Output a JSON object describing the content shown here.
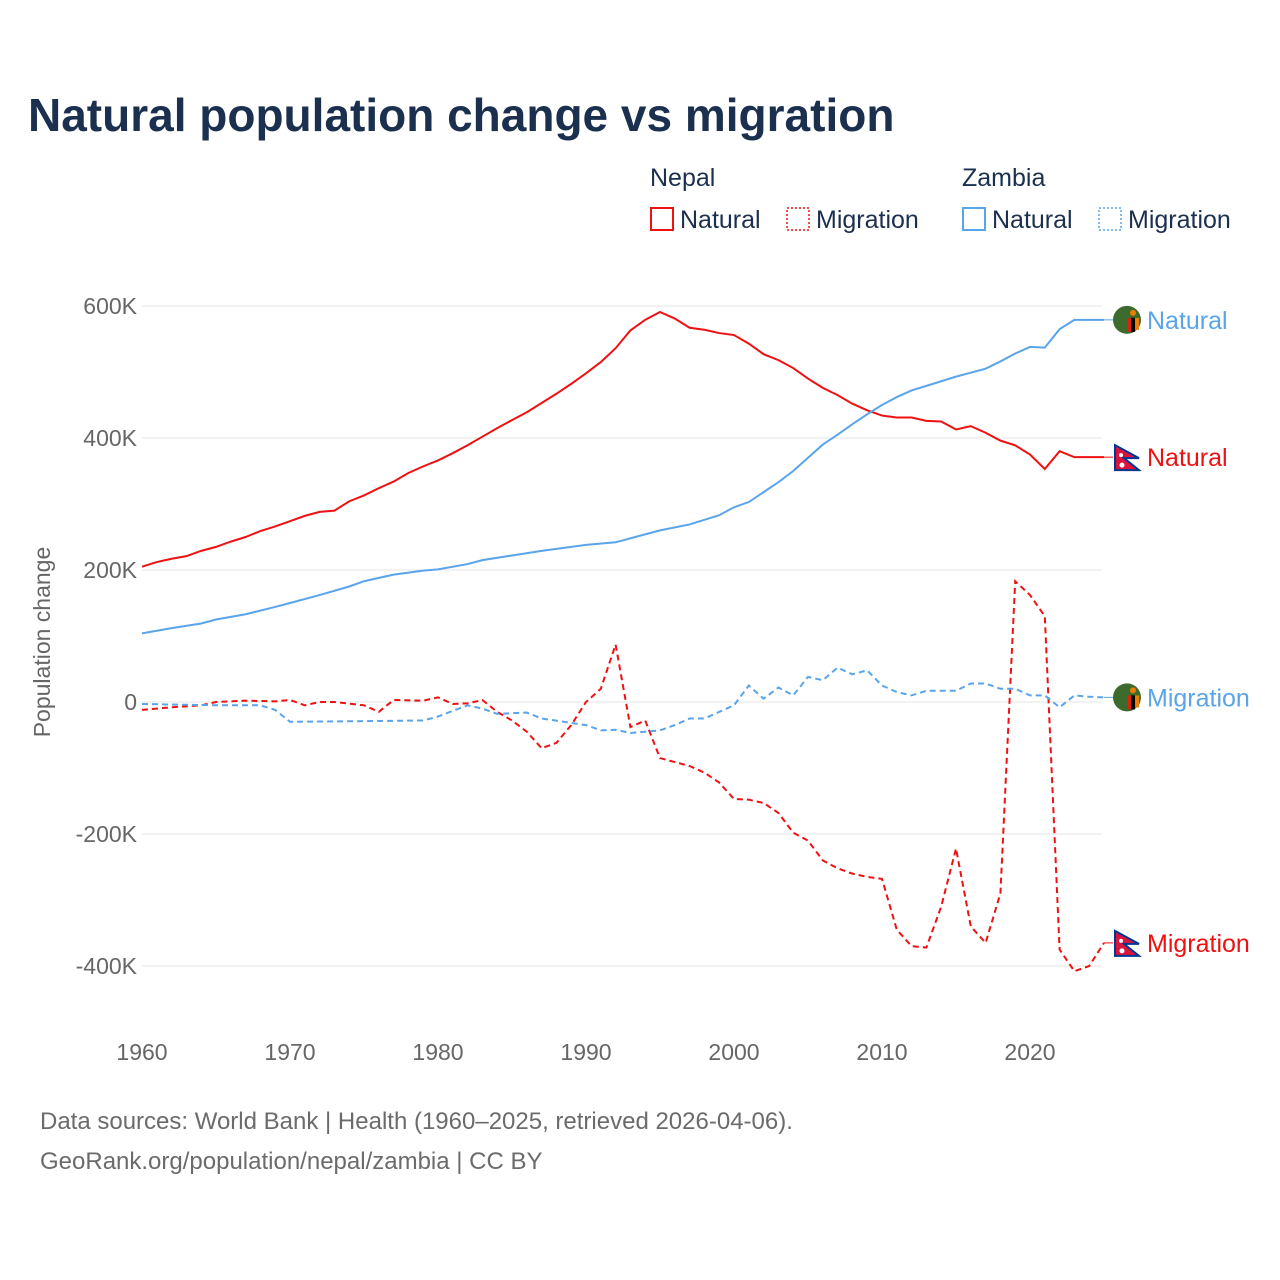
{
  "title": "Natural population change vs migration",
  "legend": {
    "groups": [
      {
        "name": "Nepal",
        "items": [
          "Natural",
          "Migration"
        ],
        "color": "#ee1111"
      },
      {
        "name": "Zambia",
        "items": [
          "Natural",
          "Migration"
        ],
        "color": "#5aa4ea"
      }
    ]
  },
  "footer": {
    "line1": "Data sources: World Bank | Health (1960–2025, retrieved 2026-04-06).",
    "line2": "GeoRank.org/population/nepal/zambia | CC BY"
  },
  "chart_data": {
    "type": "line",
    "ylabel": "Population change",
    "xlabel": "",
    "xlim": [
      1960,
      2025
    ],
    "ylim": [
      -450000,
      650000
    ],
    "xticks": [
      "1960",
      "1970",
      "1980",
      "1990",
      "2000",
      "2010",
      "2020"
    ],
    "yticks": [
      {
        "v": 600000,
        "label": "600K"
      },
      {
        "v": 400000,
        "label": "400K"
      },
      {
        "v": 200000,
        "label": "200K"
      },
      {
        "v": 0,
        "label": "0"
      },
      {
        "v": -200000,
        "label": "-200K"
      },
      {
        "v": -400000,
        "label": "-400K"
      }
    ],
    "grid": true,
    "series": [
      {
        "name": "Nepal Natural",
        "label": "Natural",
        "color": "#ee1111",
        "dash": false,
        "x": [
          1960,
          1961,
          1962,
          1963,
          1964,
          1965,
          1966,
          1967,
          1968,
          1969,
          1970,
          1971,
          1972,
          1973,
          1974,
          1975,
          1976,
          1977,
          1978,
          1979,
          1980,
          1981,
          1982,
          1983,
          1984,
          1985,
          1986,
          1987,
          1988,
          1989,
          1990,
          1991,
          1992,
          1993,
          1994,
          1995,
          1996,
          1997,
          1998,
          1999,
          2000,
          2001,
          2002,
          2003,
          2004,
          2005,
          2006,
          2007,
          2008,
          2009,
          2010,
          2011,
          2012,
          2013,
          2014,
          2015,
          2016,
          2017,
          2018,
          2019,
          2020,
          2021,
          2022,
          2023,
          2024,
          2025
        ],
        "y": [
          205000,
          212000,
          217000,
          221000,
          229000,
          235000,
          243000,
          250000,
          259000,
          266000,
          274000,
          282000,
          288000,
          290000,
          304000,
          313000,
          324000,
          334000,
          347000,
          357000,
          366000,
          377000,
          389000,
          402000,
          415000,
          427000,
          439000,
          453000,
          467000,
          482000,
          498000,
          515000,
          536000,
          563000,
          579000,
          591000,
          581000,
          567000,
          564000,
          559000,
          556000,
          543000,
          527000,
          518000,
          506000,
          490000,
          476000,
          465000,
          452000,
          442000,
          434000,
          431000,
          431000,
          426000,
          425000,
          413000,
          418000,
          408000,
          396000,
          389000,
          375000,
          353000,
          380000,
          371000,
          371000,
          371000
        ]
      },
      {
        "name": "Nepal Migration",
        "label": "Migration",
        "color": "#ee1111",
        "dash": true,
        "x": [
          1960,
          1962,
          1964,
          1965,
          1967,
          1969,
          1970,
          1971,
          1972,
          1973,
          1975,
          1976,
          1977,
          1979,
          1980,
          1981,
          1982,
          1983,
          1984,
          1985,
          1986,
          1987,
          1988,
          1989,
          1990,
          1991,
          1992,
          1993,
          1994,
          1995,
          1996,
          1997,
          1998,
          1999,
          2000,
          2001,
          2002,
          2003,
          2004,
          2005,
          2006,
          2007,
          2008,
          2009,
          2010,
          2011,
          2012,
          2013,
          2014,
          2015,
          2016,
          2017,
          2018,
          2019,
          2020,
          2021,
          2022,
          2023,
          2024,
          2025
        ],
        "y": [
          -12000,
          -8000,
          -5000,
          0,
          2000,
          1000,
          3000,
          -5000,
          0,
          0,
          -5000,
          -15000,
          3000,
          2000,
          7000,
          -3000,
          -2000,
          3000,
          -15000,
          -28000,
          -45000,
          -70000,
          -62000,
          -35000,
          0,
          20000,
          87000,
          -38000,
          -28000,
          -85000,
          -91000,
          -97000,
          -107000,
          -122000,
          -147000,
          -148000,
          -153000,
          -168000,
          -198000,
          -210000,
          -240000,
          -252000,
          -260000,
          -265000,
          -268000,
          -345000,
          -370000,
          -372000,
          -310000,
          -222000,
          -340000,
          -365000,
          -290000,
          183000,
          162000,
          130000,
          -375000,
          -408000,
          -400000,
          -365000
        ]
      },
      {
        "name": "Zambia Natural",
        "label": "Natural",
        "color": "#5aa4ea",
        "dash": false,
        "x": [
          1960,
          1962,
          1964,
          1965,
          1967,
          1969,
          1970,
          1972,
          1974,
          1975,
          1977,
          1979,
          1980,
          1982,
          1983,
          1985,
          1987,
          1989,
          1990,
          1992,
          1995,
          1997,
          1999,
          2000,
          2001,
          2002,
          2003,
          2004,
          2005,
          2006,
          2007,
          2008,
          2009,
          2010,
          2011,
          2012,
          2013,
          2014,
          2015,
          2016,
          2017,
          2018,
          2019,
          2020,
          2021,
          2022,
          2023,
          2024,
          2025
        ],
        "y": [
          104000,
          112000,
          119000,
          125000,
          133000,
          144000,
          150000,
          162000,
          175000,
          183000,
          193000,
          199000,
          201000,
          209000,
          215000,
          222000,
          229000,
          235000,
          238000,
          242000,
          260000,
          269000,
          283000,
          295000,
          303000,
          318000,
          333000,
          350000,
          370000,
          390000,
          405000,
          421000,
          436000,
          450000,
          462000,
          472000,
          479000,
          486000,
          493000,
          499000,
          505000,
          516000,
          528000,
          538000,
          537000,
          565000,
          579000,
          579000,
          579000
        ]
      },
      {
        "name": "Zambia Migration",
        "label": "Migration",
        "color": "#5aa4ea",
        "dash": true,
        "x": [
          1960,
          1965,
          1968,
          1969,
          1970,
          1975,
          1979,
          1980,
          1982,
          1983,
          1984,
          1986,
          1987,
          1990,
          1991,
          1992,
          1993,
          1995,
          1996,
          1997,
          1998,
          2000,
          2001,
          2002,
          2003,
          2004,
          2005,
          2006,
          2007,
          2008,
          2009,
          2010,
          2011,
          2012,
          2013,
          2015,
          2016,
          2017,
          2018,
          2019,
          2020,
          2021,
          2022,
          2023,
          2024,
          2025
        ],
        "y": [
          -3000,
          -5000,
          -5000,
          -12000,
          -30000,
          -29000,
          -28000,
          -22000,
          -5000,
          -10000,
          -18000,
          -16000,
          -25000,
          -35000,
          -43000,
          -42000,
          -47000,
          -43000,
          -35000,
          -25000,
          -25000,
          -5000,
          25000,
          5000,
          22000,
          10000,
          38000,
          33000,
          52000,
          42000,
          48000,
          25000,
          15000,
          10000,
          17000,
          17000,
          28000,
          28000,
          20000,
          20000,
          10000,
          10000,
          -8000,
          10000,
          8000,
          7000
        ]
      }
    ]
  }
}
